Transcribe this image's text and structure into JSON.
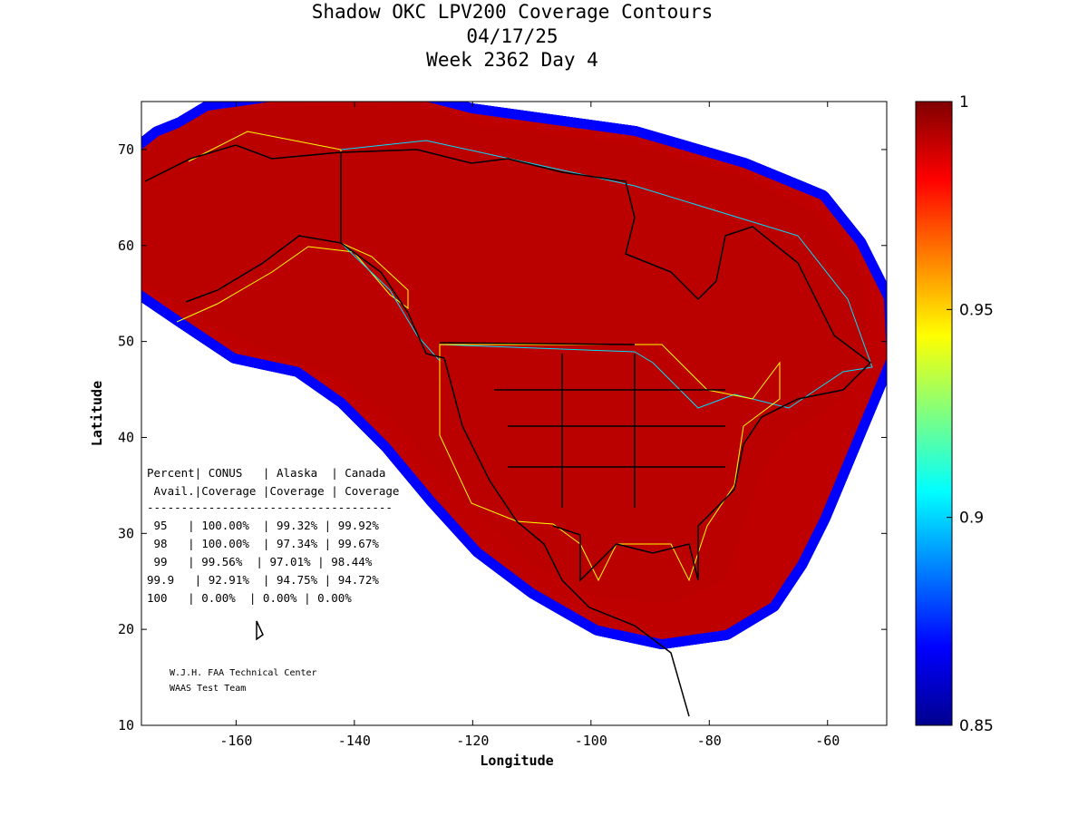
{
  "title": {
    "line1": "Shadow OKC LPV200 Coverage Contours",
    "line2": "04/17/25",
    "line3": "Week 2362 Day 4"
  },
  "chart_data": {
    "type": "heatmap",
    "title": "Shadow OKC LPV200 Coverage Contours",
    "xlabel": "Longitude",
    "ylabel": "Latitude",
    "xlim": [
      -176,
      -50
    ],
    "ylim": [
      10,
      75
    ],
    "xticks": [
      -160,
      -140,
      -120,
      -100,
      -80,
      -60
    ],
    "yticks": [
      10,
      20,
      30,
      40,
      50,
      60,
      70
    ],
    "colorbar": {
      "range": [
        0.85,
        1
      ],
      "ticks": [
        1,
        0.95,
        0.9,
        0.85
      ],
      "tick_labels": [
        "1",
        "0.95",
        "0.9",
        "0.85"
      ],
      "colormap": "jet"
    },
    "table": {
      "header1": "Percent| CONUS   | Alaska  | Canada",
      "header2": " Avail.|Coverage |Coverage | Coverage",
      "separator": "------------------------------------",
      "rows": [
        " 95   | 100.00%  | 99.32% | 99.92%",
        " 98   | 100.00%  | 97.34% | 99.67%",
        " 99   | 99.56%  | 97.01% | 98.44%",
        "99.9   | 92.91%  | 94.75% | 94.72%",
        "100   | 0.00%  | 0.00% | 0.00%"
      ]
    },
    "credit": [
      "W.J.H. FAA Technical Center",
      "WAAS Test Team"
    ]
  }
}
